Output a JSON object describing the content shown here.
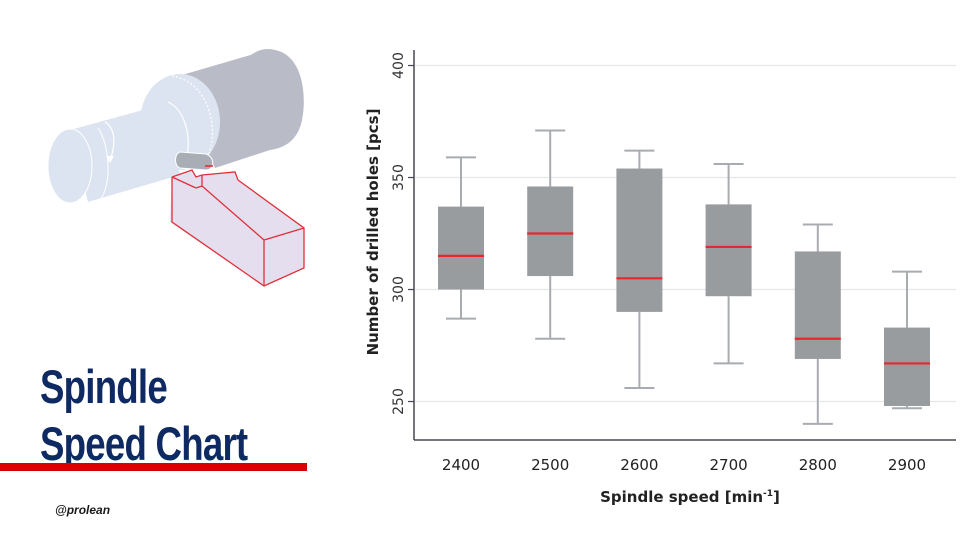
{
  "title": {
    "line1": "Spindle",
    "line2": "Speed Chart"
  },
  "handle": "@prolean",
  "colors": {
    "title": "#0f2a63",
    "accent_red": "#d90000",
    "box_fill": "#999c9f",
    "whisker": "#a8abb0",
    "median": "#e8262d",
    "grid": "#e6e6e8",
    "axis": "#4a4650"
  },
  "illustration": {
    "icon": "lathe-turning-tool-icon",
    "description": "Rotating cylindrical workpiece with a red-outlined cutting tool"
  },
  "chart_data": {
    "type": "box",
    "title": "",
    "xlabel": "Spindle speed [min⁻¹]",
    "xlabel_base": "Spindle speed [min",
    "xlabel_sup": "-1",
    "xlabel_end": "]",
    "ylabel": "Number of drilled holes [pcs]",
    "ylim": [
      232,
      405
    ],
    "yticks": [
      250,
      300,
      350,
      400
    ],
    "grid": true,
    "legend": null,
    "categories": [
      "2400",
      "2500",
      "2600",
      "2700",
      "2800",
      "2900"
    ],
    "series": [
      {
        "name": "Number of drilled holes",
        "boxes": [
          {
            "category": "2400",
            "whisker_low": 287,
            "q1": 300,
            "median": 315,
            "q3": 337,
            "whisker_high": 359
          },
          {
            "category": "2500",
            "whisker_low": 278,
            "q1": 306,
            "median": 325,
            "q3": 346,
            "whisker_high": 371
          },
          {
            "category": "2600",
            "whisker_low": 256,
            "q1": 290,
            "median": 305,
            "q3": 354,
            "whisker_high": 362
          },
          {
            "category": "2700",
            "whisker_low": 267,
            "q1": 297,
            "median": 319,
            "q3": 338,
            "whisker_high": 356
          },
          {
            "category": "2800",
            "whisker_low": 240,
            "q1": 269,
            "median": 278,
            "q3": 317,
            "whisker_high": 329
          },
          {
            "category": "2900",
            "whisker_low": 247,
            "q1": 248,
            "median": 267,
            "q3": 283,
            "whisker_high": 308
          }
        ]
      }
    ]
  }
}
